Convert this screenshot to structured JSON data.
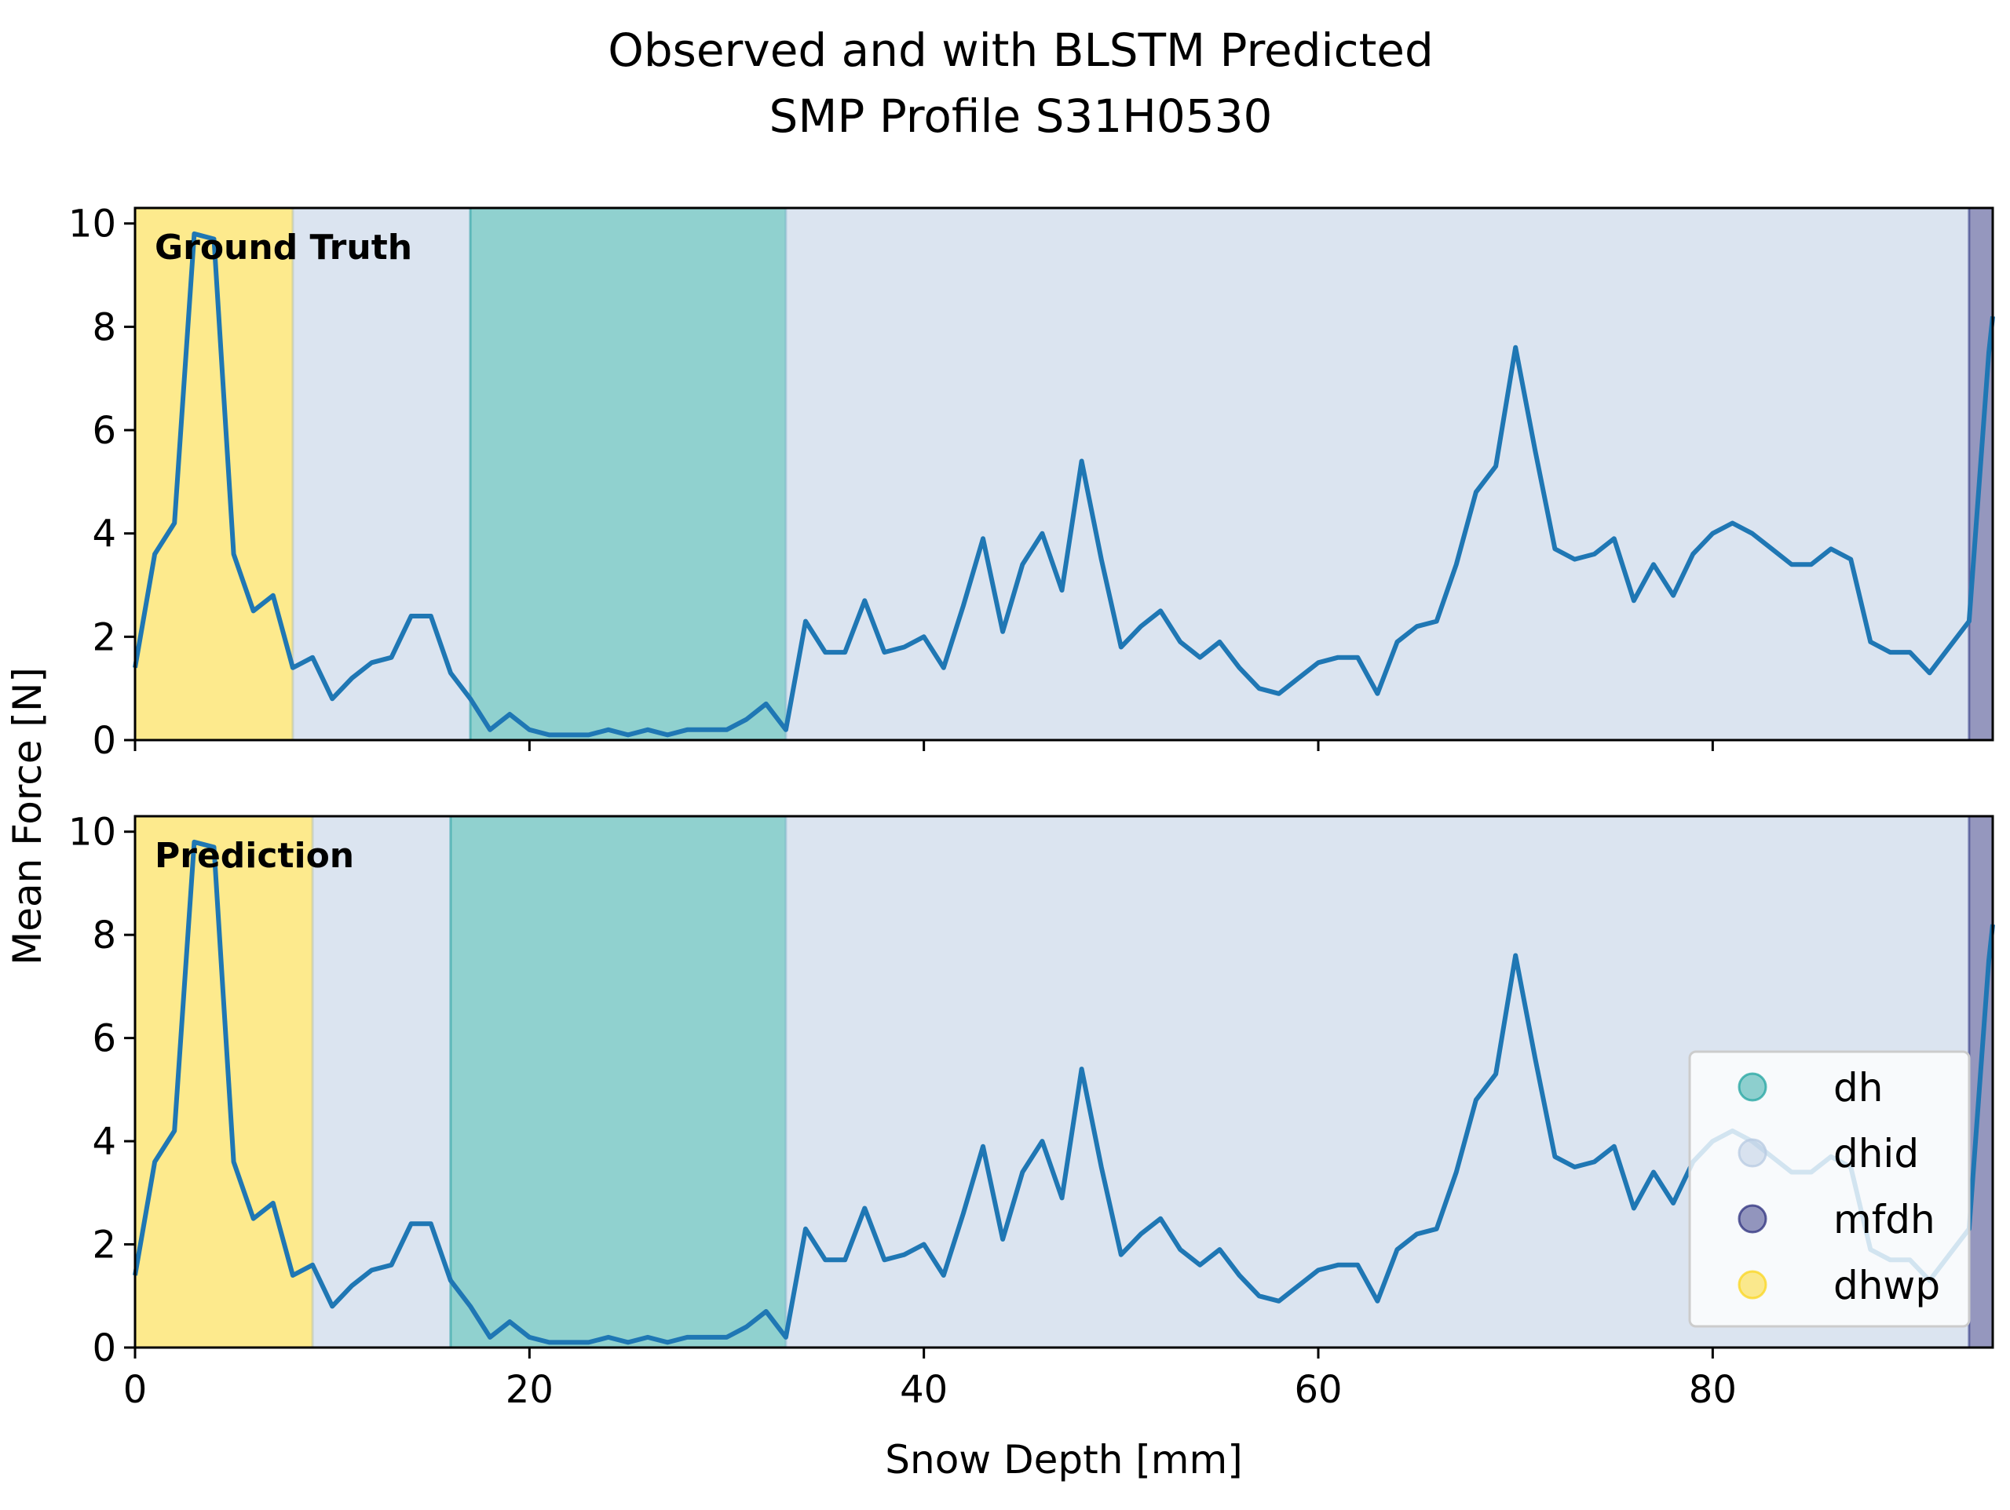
{
  "chart_data": {
    "type": "line",
    "title_line1": "Observed and with BLSTM Predicted",
    "title_line2": "SMP Profile S31H0530",
    "xlabel": "Snow Depth [mm]",
    "ylabel": "Mean Force [N]",
    "xlim": [
      0,
      94.2
    ],
    "ylim": [
      0,
      10.3
    ],
    "xticks": [
      0,
      20,
      40,
      60,
      80
    ],
    "yticks": [
      0,
      2,
      4,
      6,
      8,
      10
    ],
    "legend": {
      "position": "lower-right",
      "entries": [
        {
          "label": "dh",
          "color": "#21a4a0"
        },
        {
          "label": "dhid",
          "color": "#b7c9e2"
        },
        {
          "label": "mfdh",
          "color": "#2c2f7e"
        },
        {
          "label": "dhwp",
          "color": "#fbd61c"
        }
      ]
    },
    "line_color": "#1f77b4",
    "series": {
      "x": [
        0,
        1,
        2,
        3,
        4,
        5,
        6,
        7,
        8,
        9,
        10,
        11,
        12,
        13,
        14,
        15,
        16,
        17,
        18,
        19,
        20,
        21,
        22,
        23,
        24,
        25,
        26,
        27,
        28,
        29,
        30,
        31,
        32,
        33,
        34,
        35,
        36,
        37,
        38,
        39,
        40,
        41,
        42,
        43,
        44,
        45,
        46,
        47,
        48,
        49,
        50,
        51,
        52,
        53,
        54,
        55,
        56,
        57,
        58,
        59,
        60,
        61,
        62,
        63,
        64,
        65,
        66,
        67,
        68,
        69,
        70,
        71,
        72,
        73,
        74,
        75,
        76,
        77,
        78,
        79,
        80,
        81,
        82,
        83,
        84,
        85,
        86,
        87,
        88,
        89,
        90,
        91,
        92,
        93,
        94,
        94.2
      ],
      "y": [
        1.4,
        3.6,
        4.2,
        9.8,
        9.7,
        3.6,
        2.5,
        2.8,
        1.4,
        1.6,
        0.8,
        1.2,
        1.5,
        1.6,
        2.4,
        2.4,
        1.3,
        0.8,
        0.2,
        0.5,
        0.2,
        0.1,
        0.1,
        0.1,
        0.2,
        0.1,
        0.2,
        0.1,
        0.2,
        0.2,
        0.2,
        0.4,
        0.7,
        0.2,
        2.3,
        1.7,
        1.7,
        2.7,
        1.7,
        1.8,
        2.0,
        1.4,
        2.6,
        3.9,
        2.1,
        3.4,
        4.0,
        2.9,
        5.4,
        3.5,
        1.8,
        2.2,
        2.5,
        1.9,
        1.6,
        1.9,
        1.4,
        1.0,
        0.9,
        1.2,
        1.5,
        1.6,
        1.6,
        0.9,
        1.9,
        2.2,
        2.3,
        3.4,
        4.8,
        5.3,
        7.6,
        5.6,
        3.7,
        3.5,
        3.6,
        3.9,
        2.7,
        3.4,
        2.8,
        3.6,
        4.0,
        4.2,
        4.0,
        3.7,
        3.4,
        3.4,
        3.7,
        3.5,
        1.9,
        1.7,
        1.7,
        1.3,
        1.8,
        2.3,
        7.5,
        8.2
      ]
    },
    "panels": [
      {
        "label": "Ground Truth",
        "segments": [
          {
            "class": "dhwp",
            "from": 0,
            "to": 8
          },
          {
            "class": "dhid",
            "from": 8,
            "to": 17
          },
          {
            "class": "dh",
            "from": 17,
            "to": 33
          },
          {
            "class": "dhid",
            "from": 33,
            "to": 93
          },
          {
            "class": "mfdh",
            "from": 93,
            "to": 94.2
          }
        ]
      },
      {
        "label": "Prediction",
        "segments": [
          {
            "class": "dhwp",
            "from": 0,
            "to": 9
          },
          {
            "class": "dhid",
            "from": 9,
            "to": 16
          },
          {
            "class": "dh",
            "from": 16,
            "to": 33
          },
          {
            "class": "dhid",
            "from": 33,
            "to": 93
          },
          {
            "class": "mfdh",
            "from": 93,
            "to": 94.2
          }
        ]
      }
    ]
  }
}
